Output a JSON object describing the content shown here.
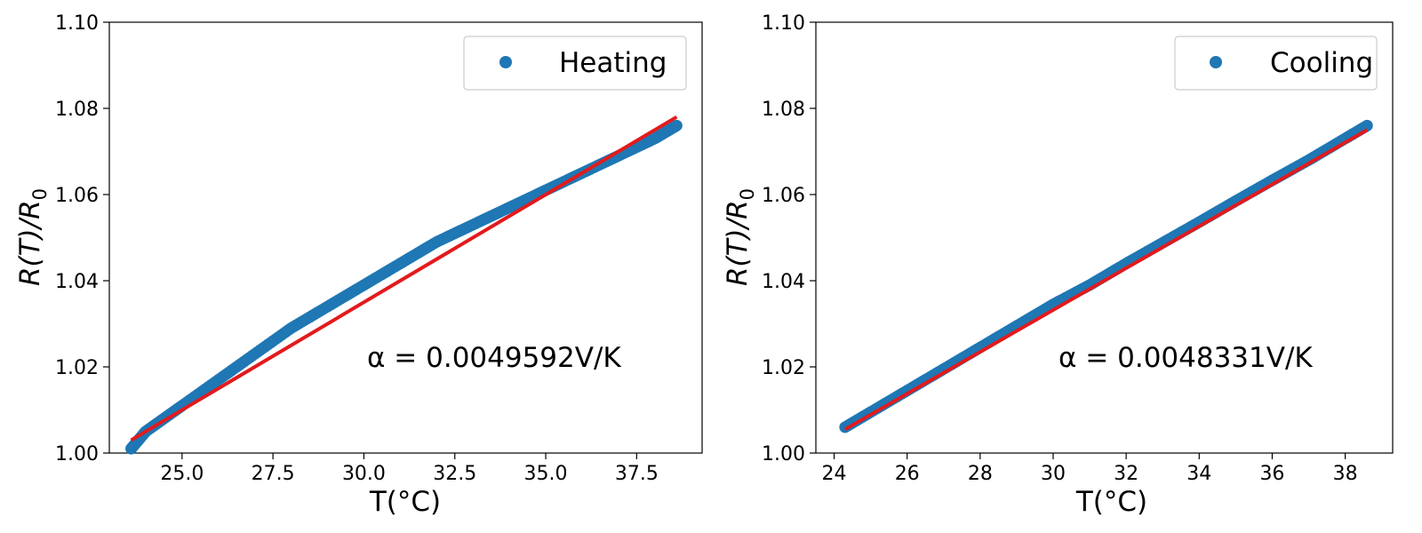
{
  "chart_data": [
    {
      "type": "scatter",
      "xlabel": "T(°C)",
      "ylabel_main": "R(T)/R",
      "ylabel_sub": "0",
      "annotation": "α = 0.0049592V/K",
      "xlim": [
        23.0,
        39.3
      ],
      "ylim": [
        1.0,
        1.1
      ],
      "xticks": [
        "25.0",
        "27.5",
        "30.0",
        "32.5",
        "35.0",
        "37.5"
      ],
      "xtick_values": [
        25.0,
        27.5,
        30.0,
        32.5,
        35.0,
        37.5
      ],
      "yticks": [
        "1.00",
        "1.02",
        "1.04",
        "1.06",
        "1.08",
        "1.10"
      ],
      "ytick_values": [
        1.0,
        1.02,
        1.04,
        1.06,
        1.08,
        1.1
      ],
      "legend_placement": "top-right",
      "series": [
        {
          "name": "Heating",
          "kind": "scatter",
          "color": "#1f77b4",
          "x": [
            23.6,
            23.8,
            24.0,
            24.5,
            25.0,
            26.0,
            27.0,
            28.0,
            29.0,
            30.0,
            31.0,
            32.0,
            33.0,
            34.0,
            35.0,
            36.0,
            37.0,
            38.0,
            38.6
          ],
          "y": [
            1.001,
            1.003,
            1.005,
            1.008,
            1.011,
            1.017,
            1.023,
            1.029,
            1.034,
            1.039,
            1.044,
            1.049,
            1.053,
            1.057,
            1.061,
            1.065,
            1.069,
            1.073,
            1.076
          ]
        },
        {
          "name": "",
          "kind": "line",
          "color": "#e31a1c",
          "x": [
            23.6,
            38.6
          ],
          "y": [
            1.003,
            1.078
          ]
        }
      ]
    },
    {
      "type": "scatter",
      "xlabel": "T(°C)",
      "ylabel_main": "R(T)/R",
      "ylabel_sub": "0",
      "annotation": "α = 0.0048331V/K",
      "xlim": [
        23.5,
        39.3
      ],
      "ylim": [
        1.0,
        1.1
      ],
      "xticks": [
        "24",
        "26",
        "28",
        "30",
        "32",
        "34",
        "36",
        "38"
      ],
      "xtick_values": [
        24,
        26,
        28,
        30,
        32,
        34,
        36,
        38
      ],
      "yticks": [
        "1.00",
        "1.02",
        "1.04",
        "1.06",
        "1.08",
        "1.10"
      ],
      "ytick_values": [
        1.0,
        1.02,
        1.04,
        1.06,
        1.08,
        1.1
      ],
      "legend_placement": "top-right",
      "series": [
        {
          "name": "Cooling",
          "kind": "scatter",
          "color": "#1f77b4",
          "x": [
            24.3,
            25.0,
            26.0,
            27.0,
            28.0,
            29.0,
            30.0,
            31.0,
            32.0,
            33.0,
            34.0,
            35.0,
            36.0,
            37.0,
            38.0,
            38.6
          ],
          "y": [
            1.006,
            1.0095,
            1.0145,
            1.0195,
            1.0245,
            1.0295,
            1.0345,
            1.039,
            1.044,
            1.0488,
            1.0536,
            1.0585,
            1.0633,
            1.068,
            1.073,
            1.076
          ]
        },
        {
          "name": "",
          "kind": "line",
          "color": "#e31a1c",
          "x": [
            24.3,
            38.6
          ],
          "y": [
            1.0055,
            1.075
          ]
        }
      ]
    }
  ]
}
